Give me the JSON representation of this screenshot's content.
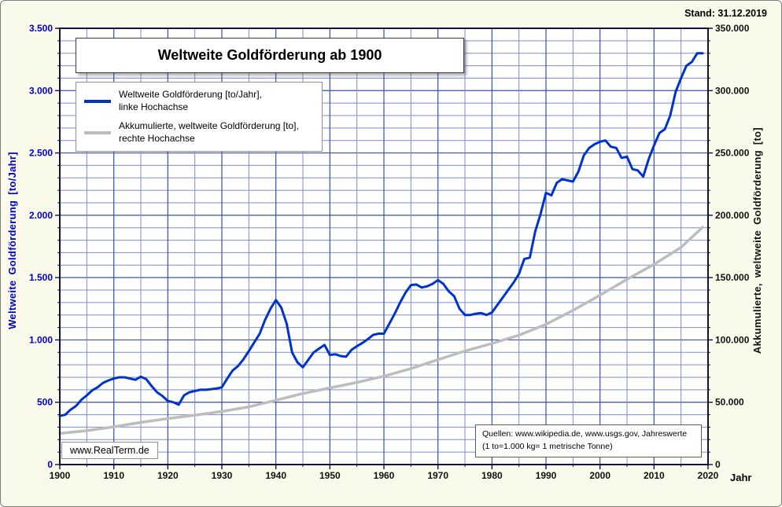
{
  "meta": {
    "stand": "Stand: 31.12.2019"
  },
  "title": "Weltweite Goldförderung ab 1900",
  "legend": {
    "items": [
      {
        "label_line1": "Weltweite Goldförderung [to/Jahr],",
        "label_line2": "linke Hochachse",
        "color": "#0033cc"
      },
      {
        "label_line1": "Akkumulierte, weltweite  Goldförderung [to],",
        "label_line2": "rechte Hochachse",
        "color": "#bdbdbd"
      }
    ]
  },
  "watermark": "www.RealTerm.de",
  "sources": {
    "line1": "Quellen: www.wikipedia.de, www.usgs.gov, Jahreswerte",
    "line2": "(1 to=1.000 kg= 1 metrische Tonne)"
  },
  "axes": {
    "x_title": "Jahr",
    "left_title": "Weltweite Goldförderung  [to/Jahr]",
    "right_title": "Akkumulierte,  weltweite  Goldförderung   [to]"
  },
  "chart_data": {
    "type": "line",
    "title": "Weltweite Goldförderung ab 1900",
    "x_axis": {
      "label": "Jahr",
      "min": 1900,
      "max": 2020,
      "major": 10,
      "minor": 5,
      "tick_labels": [
        "1900",
        "1910",
        "1920",
        "1930",
        "1940",
        "1950",
        "1960",
        "1970",
        "1980",
        "1990",
        "2000",
        "2010",
        "2020"
      ]
    },
    "left_axis": {
      "label": "Weltweite Goldförderung [to/Jahr]",
      "min": 0,
      "max": 3500,
      "major": 500,
      "minor": 100,
      "tick_labels": [
        "0",
        "500",
        "1.000",
        "1.500",
        "2.000",
        "2.500",
        "3.000",
        "3.500"
      ]
    },
    "right_axis": {
      "label": "Akkumulierte, weltweite Goldförderung [to]",
      "min": 0,
      "max": 350000,
      "major": 50000,
      "minor": 10000,
      "tick_labels": [
        "0",
        "50.000",
        "100.000",
        "150.000",
        "200.000",
        "250.000",
        "300.000",
        "350.000"
      ]
    },
    "grid": {
      "minor_color": "#7b8dc9",
      "major_color": "#3a50a5",
      "frame_color": "#12123a"
    },
    "series": [
      {
        "name": "Weltweite Goldförderung [to/Jahr], linke Hochachse",
        "axis": "left",
        "color": "#0033cc",
        "width": 3,
        "start_year": 1900,
        "values": [
          390,
          400,
          440,
          470,
          520,
          555,
          595,
          620,
          655,
          675,
          690,
          700,
          700,
          690,
          680,
          705,
          685,
          630,
          580,
          550,
          510,
          500,
          480,
          555,
          580,
          590,
          600,
          600,
          605,
          610,
          620,
          690,
          755,
          790,
          845,
          910,
          980,
          1050,
          1160,
          1250,
          1320,
          1260,
          1130,
          900,
          820,
          780,
          840,
          900,
          930,
          960,
          880,
          885,
          870,
          865,
          920,
          950,
          975,
          1005,
          1040,
          1050,
          1050,
          1130,
          1210,
          1300,
          1380,
          1440,
          1445,
          1420,
          1430,
          1450,
          1480,
          1450,
          1390,
          1350,
          1250,
          1200,
          1200,
          1210,
          1215,
          1200,
          1220,
          1280,
          1340,
          1400,
          1460,
          1530,
          1650,
          1660,
          1870,
          2010,
          2180,
          2160,
          2260,
          2290,
          2280,
          2270,
          2350,
          2480,
          2540,
          2570,
          2590,
          2600,
          2550,
          2540,
          2460,
          2470,
          2370,
          2360,
          2310,
          2450,
          2560,
          2660,
          2690,
          2800,
          2990,
          3100,
          3200,
          3230,
          3300,
          3300
        ]
      },
      {
        "name": "Akkumulierte, weltweite Goldförderung [to], rechte Hochachse",
        "axis": "right",
        "color": "#bdbdbd",
        "width": 3.5,
        "years": [
          1900,
          1905,
          1910,
          1915,
          1920,
          1925,
          1930,
          1935,
          1940,
          1945,
          1950,
          1955,
          1960,
          1965,
          1970,
          1975,
          1980,
          1985,
          1990,
          1995,
          2000,
          2005,
          2010,
          2015,
          2019
        ],
        "values": [
          25000,
          27200,
          30300,
          33800,
          36900,
          39600,
          42600,
          46300,
          51600,
          57000,
          61500,
          65900,
          70900,
          77000,
          84100,
          91100,
          97100,
          103800,
          112500,
          123700,
          135900,
          148600,
          160600,
          174300,
          190400
        ]
      }
    ]
  }
}
